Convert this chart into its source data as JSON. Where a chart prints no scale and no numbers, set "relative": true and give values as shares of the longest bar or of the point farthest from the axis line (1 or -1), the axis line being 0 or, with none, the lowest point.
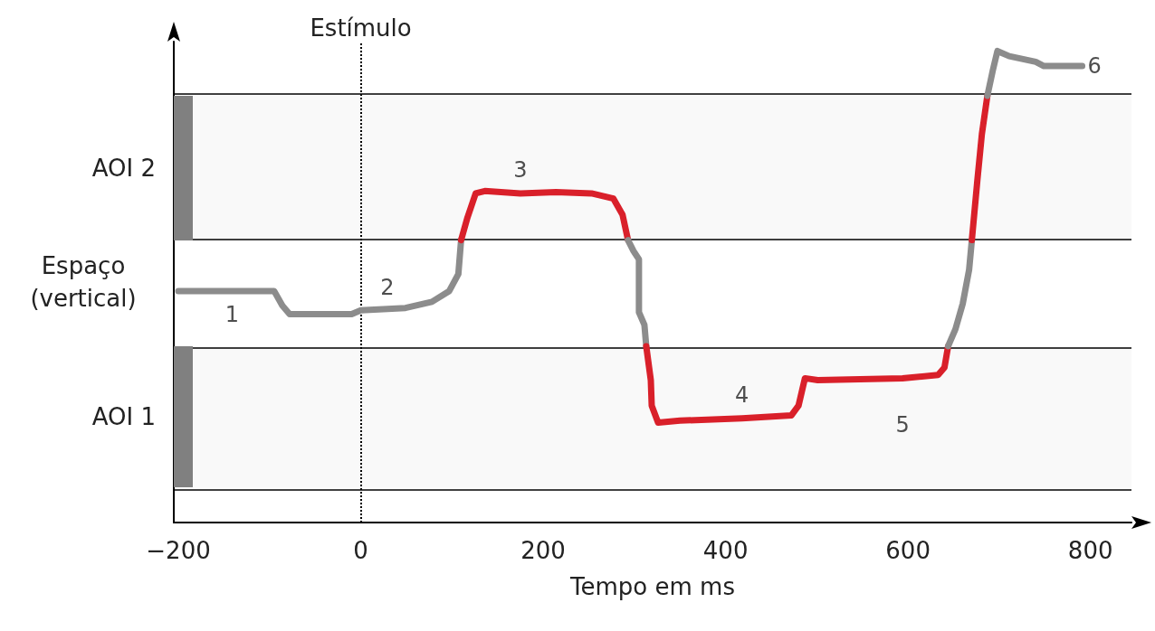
{
  "chart_data": {
    "type": "line",
    "relative": true,
    "xlabel": "Tempo em ms",
    "ylabel": "Espaço\n(vertical)",
    "xlim": [
      -205,
      845
    ],
    "xticks": [
      {
        "value": -200,
        "label": "−200"
      },
      0,
      200,
      400,
      600,
      800
    ],
    "grid": false,
    "marker": "none",
    "line_style": "solid",
    "series": [
      {
        "color": "#8c8c8c",
        "x": [
          -200,
          -95,
          -86,
          -78,
          -10,
          0,
          49,
          78,
          97,
          107,
          110
        ],
        "values": [
          0.491,
          0.491,
          0.46,
          0.442,
          0.442,
          0.45,
          0.455,
          0.468,
          0.491,
          0.527,
          0.599
        ]
      },
      {
        "color": "#d9202a",
        "x": [
          110,
          117,
          126,
          136,
          175,
          214,
          253,
          277,
          287,
          293
        ],
        "values": [
          0.599,
          0.647,
          0.698,
          0.703,
          0.698,
          0.701,
          0.698,
          0.687,
          0.653,
          0.599
        ]
      },
      {
        "color": "#8c8c8c",
        "x": [
          293,
          299,
          305,
          305,
          311,
          313
        ],
        "values": [
          0.599,
          0.576,
          0.558,
          0.446,
          0.419,
          0.374
        ]
      },
      {
        "color": "#d9202a",
        "x": [
          313,
          318,
          319,
          326,
          350,
          418,
          472,
          480,
          487,
          501,
          594,
          633,
          640,
          644
        ],
        "values": [
          0.374,
          0.302,
          0.248,
          0.212,
          0.216,
          0.221,
          0.227,
          0.248,
          0.306,
          0.302,
          0.306,
          0.313,
          0.329,
          0.374
        ]
      },
      {
        "color": "#8c8c8c",
        "x": [
          644,
          652,
          660,
          667,
          670
        ],
        "values": [
          0.374,
          0.41,
          0.464,
          0.536,
          0.599
        ]
      },
      {
        "color": "#d9202a",
        "x": [
          670,
          676,
          681,
          687
        ],
        "values": [
          0.599,
          0.725,
          0.824,
          0.905
        ]
      },
      {
        "color": "#8c8c8c",
        "x": [
          687,
          693,
          698,
          711,
          740,
          749,
          791
        ],
        "values": [
          0.905,
          0.959,
          1.0,
          0.989,
          0.977,
          0.968,
          0.968
        ]
      }
    ],
    "bands": [
      {
        "axis": "y",
        "from": 0.599,
        "to": 0.905,
        "label": "AOI 2"
      },
      {
        "axis": "y",
        "from": 0.074,
        "to": 0.374,
        "label": "AOI 1"
      }
    ],
    "ref_lines": [
      {
        "axis": "x",
        "value": 0,
        "label": "Estímulo",
        "line_style": "dotted",
        "color": "#000000"
      }
    ],
    "annotations": [
      {
        "text": "1",
        "x": -141,
        "y": 0.491
      },
      {
        "text": "2",
        "x": 29,
        "y": 0.453
      },
      {
        "text": "3",
        "x": 175,
        "y": 0.698
      },
      {
        "text": "4",
        "x": 418,
        "y": 0.221
      },
      {
        "text": "5",
        "x": 594,
        "y": 0.306
      },
      {
        "text": "6",
        "x": 791,
        "y": 0.968
      }
    ]
  }
}
